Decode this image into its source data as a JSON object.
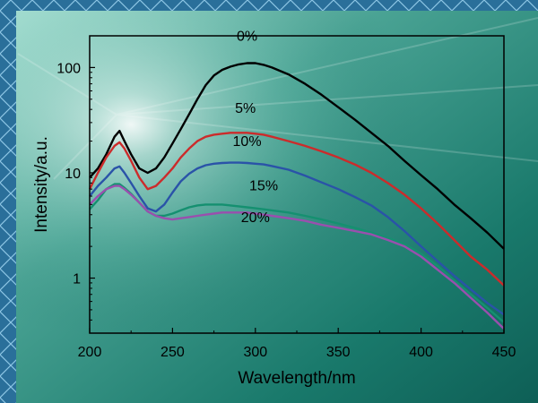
{
  "chart_data": {
    "type": "line",
    "xlabel": "Wavelength/nm",
    "ylabel": "Intensity/a.u.",
    "xlim": [
      200,
      450
    ],
    "ylim": [
      0.3,
      200
    ],
    "y_scale": "log",
    "grid": false,
    "x_ticks": [
      "200",
      "250",
      "300",
      "350",
      "400",
      "450"
    ],
    "y_ticks": [
      "1",
      "10",
      "100"
    ],
    "colors": {
      "0%": "#000000",
      "5%": "#cc2b2b",
      "10%": "#2a53a8",
      "15%": "#159070",
      "20%": "#9a4fae"
    },
    "annotations": [
      {
        "text": "0%",
        "x": 295,
        "y": 180
      },
      {
        "text": "5%",
        "x": 294,
        "y": 37
      },
      {
        "text": "10%",
        "x": 295,
        "y": 18
      },
      {
        "text": "15%",
        "x": 305,
        "y": 6.8
      },
      {
        "text": "20%",
        "x": 300,
        "y": 3.4
      }
    ],
    "series": [
      {
        "name": "0%",
        "x": [
          200,
          205,
          210,
          215,
          218,
          221,
          225,
          230,
          235,
          240,
          245,
          250,
          255,
          260,
          265,
          270,
          275,
          280,
          285,
          290,
          295,
          300,
          305,
          310,
          320,
          330,
          340,
          350,
          360,
          370,
          380,
          390,
          400,
          410,
          420,
          430,
          440,
          450
        ],
        "y": [
          9,
          11,
          15,
          22,
          25,
          20,
          15,
          11,
          10,
          11,
          14,
          19,
          26,
          36,
          50,
          68,
          84,
          95,
          102,
          107,
          110,
          110,
          106,
          100,
          86,
          70,
          55,
          42,
          32,
          24,
          18,
          13,
          9.5,
          7,
          5,
          3.7,
          2.7,
          1.9
        ]
      },
      {
        "name": "5%",
        "x": [
          200,
          205,
          210,
          215,
          218,
          221,
          225,
          230,
          235,
          240,
          245,
          250,
          255,
          260,
          265,
          270,
          275,
          280,
          285,
          290,
          295,
          300,
          305,
          310,
          320,
          330,
          340,
          350,
          360,
          370,
          380,
          390,
          400,
          410,
          420,
          430,
          440,
          450
        ],
        "y": [
          7,
          10,
          14,
          18,
          19.5,
          17,
          13,
          9,
          7,
          7.5,
          9,
          11,
          14,
          17,
          20,
          22,
          23,
          23.5,
          24,
          24,
          24,
          23.5,
          23,
          22,
          20,
          18,
          16,
          14,
          12,
          10,
          8,
          6.2,
          4.6,
          3.3,
          2.3,
          1.6,
          1.2,
          0.85
        ]
      },
      {
        "name": "10%",
        "x": [
          200,
          205,
          210,
          215,
          218,
          221,
          225,
          230,
          235,
          240,
          245,
          250,
          255,
          260,
          265,
          270,
          275,
          280,
          285,
          290,
          295,
          300,
          305,
          310,
          320,
          330,
          340,
          350,
          360,
          370,
          380,
          390,
          400,
          410,
          420,
          430,
          440,
          450
        ],
        "y": [
          6,
          7.5,
          9,
          11,
          11.5,
          10,
          8,
          6,
          4.6,
          4.3,
          5,
          6.5,
          8.3,
          9.8,
          11,
          11.8,
          12.2,
          12.4,
          12.5,
          12.5,
          12.4,
          12.2,
          12,
          11.6,
          10.7,
          9.4,
          8.1,
          7,
          5.9,
          4.9,
          3.8,
          2.8,
          2,
          1.45,
          1.05,
          0.78,
          0.58,
          0.45
        ]
      },
      {
        "name": "15%",
        "x": [
          200,
          205,
          210,
          215,
          218,
          221,
          225,
          230,
          235,
          240,
          245,
          250,
          255,
          260,
          265,
          270,
          275,
          280,
          285,
          290,
          295,
          300,
          305,
          310,
          320,
          330,
          340,
          350,
          360,
          370,
          380,
          390,
          400,
          410,
          420,
          430,
          440,
          450
        ],
        "y": [
          4.5,
          5.5,
          7,
          7.8,
          7.8,
          7.2,
          6.3,
          5.2,
          4.3,
          3.9,
          3.9,
          4.1,
          4.4,
          4.7,
          4.9,
          5,
          5,
          5,
          4.9,
          4.8,
          4.7,
          4.6,
          4.5,
          4.4,
          4.2,
          3.9,
          3.6,
          3.3,
          3,
          2.7,
          2.4,
          2.1,
          1.7,
          1.3,
          0.95,
          0.7,
          0.52,
          0.38
        ]
      },
      {
        "name": "20%",
        "x": [
          200,
          205,
          210,
          215,
          218,
          221,
          225,
          230,
          235,
          240,
          245,
          250,
          255,
          260,
          265,
          270,
          275,
          280,
          285,
          290,
          295,
          300,
          305,
          310,
          320,
          330,
          340,
          350,
          360,
          370,
          380,
          390,
          400,
          410,
          420,
          430,
          440,
          450
        ],
        "y": [
          5,
          6,
          7,
          7.5,
          7.5,
          7,
          6.2,
          5.2,
          4.3,
          3.9,
          3.7,
          3.6,
          3.7,
          3.8,
          3.9,
          4,
          4.1,
          4.2,
          4.2,
          4.2,
          4.2,
          4.1,
          4,
          3.9,
          3.7,
          3.5,
          3.2,
          3,
          2.8,
          2.6,
          2.3,
          2,
          1.6,
          1.2,
          0.9,
          0.65,
          0.47,
          0.33
        ]
      }
    ]
  }
}
